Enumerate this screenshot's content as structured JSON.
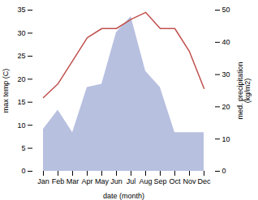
{
  "chart_data": {
    "type": "line",
    "categories": [
      "Jan",
      "Feb",
      "Mar",
      "Apr",
      "May",
      "Jun",
      "Jul",
      "Aug",
      "Sep",
      "Oct",
      "Nov",
      "Dec"
    ],
    "xlabel": "date (month)",
    "ylabel": "max temp (C)",
    "y2label": "med. precipitation\n(kg/m2)",
    "ylim": [
      0,
      35
    ],
    "yticks": [
      0,
      5,
      10,
      15,
      20,
      25,
      30,
      35
    ],
    "y2lim": [
      0,
      50
    ],
    "y2ticks": [
      0,
      10,
      20,
      30,
      40,
      50
    ],
    "grid": false,
    "series": [
      {
        "type": "area",
        "axis": "y2",
        "color": "#b8c0e0",
        "values": [
          13,
          19,
          12,
          26,
          27,
          43,
          48,
          31,
          26,
          12,
          12,
          12
        ]
      },
      {
        "type": "line",
        "color": "#c0504d",
        "values": [
          16,
          19,
          24,
          29,
          31,
          31,
          33,
          34.5,
          31,
          31,
          26,
          18
        ]
      }
    ]
  }
}
